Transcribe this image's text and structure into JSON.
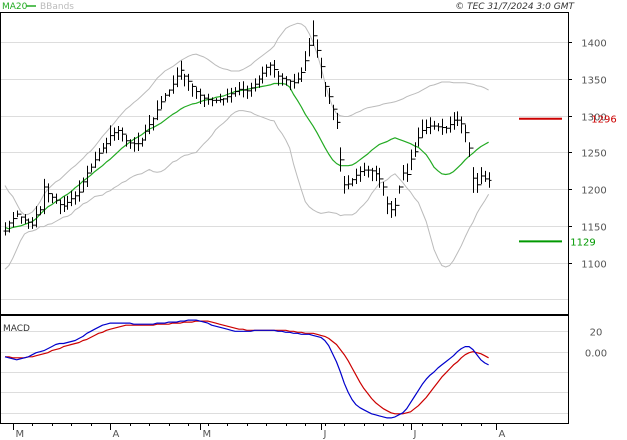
{
  "header": {
    "legend_ma": "MA20",
    "legend_bb": "BBands",
    "copyright": "© TEC 31/7/2024 3:0 GMT"
  },
  "colors": {
    "ma20": "#22aa22",
    "bbands": "#bbbbbb",
    "price": "#000000",
    "resistance": "#cc0000",
    "support": "#009900",
    "macd": "#0000cc",
    "signal": "#cc0000",
    "grid": "#dddddd"
  },
  "chart_data": [
    {
      "type": "ohlc",
      "title": "",
      "ylim": [
        1030,
        1440
      ],
      "y_ticks": [
        1100,
        1150,
        1200,
        1250,
        1300,
        1350,
        1400
      ],
      "y_tick_labels": [
        "1100",
        "1150",
        "1200",
        "1250",
        "1300",
        "1350",
        "1400"
      ],
      "x_month_labels": [
        "M",
        "A",
        "M",
        "J",
        "J",
        "A"
      ],
      "x_month_start_index": [
        2,
        27,
        50,
        81,
        104,
        126
      ],
      "series_count": 130,
      "closes": [
        1143,
        1154,
        1160,
        1166,
        1162,
        1158,
        1155,
        1151,
        1165,
        1172,
        1203,
        1194,
        1189,
        1185,
        1179,
        1177,
        1182,
        1187,
        1191,
        1196,
        1210,
        1222,
        1230,
        1240,
        1249,
        1256,
        1262,
        1273,
        1277,
        1280,
        1275,
        1266,
        1263,
        1262,
        1262,
        1267,
        1279,
        1288,
        1296,
        1308,
        1319,
        1328,
        1335,
        1343,
        1354,
        1362,
        1354,
        1347,
        1340,
        1333,
        1328,
        1324,
        1322,
        1321,
        1321,
        1322,
        1323,
        1326,
        1330,
        1333,
        1336,
        1335,
        1334,
        1338,
        1343,
        1350,
        1358,
        1366,
        1369,
        1363,
        1354,
        1351,
        1349,
        1347,
        1345,
        1350,
        1359,
        1375,
        1396,
        1409,
        1389,
        1367,
        1340,
        1326,
        1309,
        1291,
        1240,
        1206,
        1207,
        1213,
        1219,
        1224,
        1226,
        1226,
        1225,
        1221,
        1214,
        1203,
        1180,
        1172,
        1178,
        1203,
        1222,
        1220,
        1241,
        1251,
        1270,
        1280,
        1284,
        1286,
        1286,
        1285,
        1284,
        1283,
        1288,
        1294,
        1294,
        1289,
        1277,
        1256,
        1215,
        1206,
        1218,
        1214,
        1212
      ],
      "highs": [
        1155,
        1157,
        1169,
        1171,
        1163,
        1166,
        1160,
        1162,
        1177,
        1177,
        1214,
        1208,
        1194,
        1194,
        1186,
        1190,
        1191,
        1198,
        1197,
        1212,
        1216,
        1232,
        1235,
        1251,
        1256,
        1263,
        1270,
        1287,
        1284,
        1286,
        1284,
        1274,
        1268,
        1271,
        1277,
        1270,
        1288,
        1301,
        1298,
        1321,
        1327,
        1331,
        1336,
        1355,
        1366,
        1375,
        1357,
        1357,
        1344,
        1339,
        1337,
        1329,
        1330,
        1325,
        1324,
        1330,
        1324,
        1337,
        1338,
        1339,
        1346,
        1347,
        1341,
        1345,
        1351,
        1355,
        1367,
        1370,
        1373,
        1376,
        1361,
        1358,
        1354,
        1349,
        1357,
        1359,
        1366,
        1388,
        1406,
        1430,
        1404,
        1379,
        1346,
        1338,
        1315,
        1304,
        1257,
        1218,
        1219,
        1215,
        1228,
        1231,
        1236,
        1232,
        1229,
        1232,
        1229,
        1210,
        1190,
        1184,
        1188,
        1205,
        1233,
        1235,
        1254,
        1264,
        1284,
        1295,
        1295,
        1298,
        1293,
        1290,
        1296,
        1286,
        1299,
        1305,
        1306,
        1299,
        1288,
        1264,
        1230,
        1222,
        1230,
        1225,
        1223
      ],
      "lows": [
        1137,
        1141,
        1148,
        1162,
        1153,
        1153,
        1146,
        1146,
        1148,
        1165,
        1166,
        1182,
        1181,
        1180,
        1166,
        1169,
        1172,
        1177,
        1179,
        1183,
        1196,
        1203,
        1223,
        1229,
        1238,
        1250,
        1249,
        1259,
        1266,
        1267,
        1265,
        1258,
        1255,
        1251,
        1252,
        1258,
        1266,
        1275,
        1280,
        1294,
        1309,
        1320,
        1326,
        1330,
        1339,
        1349,
        1340,
        1334,
        1326,
        1323,
        1316,
        1312,
        1315,
        1313,
        1317,
        1318,
        1314,
        1318,
        1318,
        1326,
        1328,
        1325,
        1323,
        1326,
        1333,
        1338,
        1344,
        1353,
        1355,
        1352,
        1341,
        1341,
        1341,
        1335,
        1337,
        1344,
        1346,
        1361,
        1381,
        1395,
        1379,
        1351,
        1326,
        1316,
        1294,
        1282,
        1224,
        1194,
        1200,
        1204,
        1207,
        1210,
        1218,
        1216,
        1211,
        1211,
        1202,
        1191,
        1166,
        1161,
        1163,
        1194,
        1212,
        1210,
        1226,
        1244,
        1258,
        1270,
        1275,
        1275,
        1281,
        1279,
        1274,
        1276,
        1277,
        1281,
        1286,
        1276,
        1264,
        1244,
        1195,
        1195,
        1207,
        1210,
        1202
      ],
      "ma20": [
        1148,
        1146,
        1148,
        1149,
        1150,
        1152,
        1154,
        1156,
        1160,
        1166,
        1171,
        1176,
        1179,
        1183,
        1186,
        1190,
        1193,
        1197,
        1202,
        1206,
        1211,
        1215,
        1219,
        1224,
        1228,
        1232,
        1237,
        1241,
        1246,
        1251,
        1256,
        1260,
        1264,
        1268,
        1271,
        1274,
        1278,
        1282,
        1284,
        1287,
        1290,
        1294,
        1298,
        1302,
        1305,
        1309,
        1312,
        1314,
        1316,
        1317,
        1319,
        1321,
        1322,
        1323,
        1325,
        1326,
        1327,
        1329,
        1331,
        1333,
        1334,
        1335,
        1336,
        1337,
        1338,
        1339,
        1340,
        1341,
        1342,
        1344,
        1344,
        1344,
        1343,
        1339,
        1329,
        1321,
        1312,
        1302,
        1294,
        1286,
        1277,
        1267,
        1257,
        1248,
        1240,
        1235,
        1232,
        1232,
        1232,
        1233,
        1236,
        1240,
        1244,
        1248,
        1253,
        1257,
        1261,
        1263,
        1265,
        1268,
        1270,
        1268,
        1266,
        1264,
        1262,
        1259,
        1257,
        1252,
        1247,
        1239,
        1230,
        1225,
        1221,
        1220,
        1221,
        1224,
        1229,
        1234,
        1240,
        1245,
        1249,
        1254,
        1258,
        1261,
        1264
      ],
      "bb_upper": [
        1205,
        1196,
        1190,
        1180,
        1170,
        1165,
        1166,
        1169,
        1175,
        1183,
        1193,
        1200,
        1205,
        1210,
        1213,
        1218,
        1223,
        1228,
        1232,
        1237,
        1242,
        1248,
        1252,
        1258,
        1265,
        1272,
        1278,
        1284,
        1290,
        1297,
        1303,
        1309,
        1313,
        1318,
        1322,
        1327,
        1332,
        1337,
        1344,
        1351,
        1356,
        1361,
        1364,
        1367,
        1371,
        1375,
        1378,
        1381,
        1383,
        1384,
        1382,
        1380,
        1377,
        1373,
        1369,
        1366,
        1364,
        1363,
        1361,
        1361,
        1361,
        1363,
        1366,
        1369,
        1374,
        1378,
        1382,
        1386,
        1390,
        1395,
        1405,
        1412,
        1419,
        1422,
        1424,
        1426,
        1425,
        1421,
        1412,
        1400,
        1385,
        1367,
        1346,
        1327,
        1312,
        1303,
        1300,
        1299,
        1299,
        1301,
        1304,
        1306,
        1309,
        1311,
        1312,
        1313,
        1314,
        1316,
        1317,
        1318,
        1319,
        1321,
        1323,
        1326,
        1328,
        1330,
        1332,
        1335,
        1338,
        1341,
        1342,
        1344,
        1346,
        1346,
        1346,
        1345,
        1345,
        1345,
        1345,
        1344,
        1343,
        1341,
        1340,
        1338,
        1335
      ],
      "bb_lower": [
        1091,
        1096,
        1106,
        1118,
        1130,
        1139,
        1142,
        1143,
        1145,
        1149,
        1149,
        1152,
        1153,
        1156,
        1159,
        1162,
        1163,
        1166,
        1172,
        1175,
        1180,
        1182,
        1186,
        1190,
        1191,
        1192,
        1196,
        1198,
        1202,
        1205,
        1209,
        1211,
        1215,
        1218,
        1220,
        1221,
        1224,
        1227,
        1224,
        1223,
        1224,
        1227,
        1232,
        1237,
        1239,
        1243,
        1246,
        1247,
        1249,
        1250,
        1256,
        1262,
        1267,
        1273,
        1281,
        1286,
        1290,
        1295,
        1301,
        1305,
        1307,
        1307,
        1306,
        1305,
        1302,
        1300,
        1298,
        1296,
        1294,
        1293,
        1283,
        1276,
        1267,
        1256,
        1234,
        1216,
        1199,
        1183,
        1176,
        1172,
        1169,
        1167,
        1168,
        1169,
        1168,
        1167,
        1164,
        1165,
        1165,
        1165,
        1168,
        1174,
        1179,
        1185,
        1194,
        1201,
        1208,
        1210,
        1213,
        1218,
        1221,
        1215,
        1209,
        1202,
        1196,
        1188,
        1182,
        1169,
        1156,
        1137,
        1118,
        1106,
        1096,
        1094,
        1096,
        1103,
        1113,
        1123,
        1135,
        1146,
        1155,
        1167,
        1176,
        1184,
        1193
      ],
      "resistance": {
        "value": 1296,
        "label": "1296"
      },
      "support": {
        "value": 1129,
        "label": "1129"
      },
      "legend": [
        "MA20",
        "BBands"
      ]
    },
    {
      "type": "line",
      "title": "MACD",
      "ylim": [
        -70,
        35
      ],
      "y_ticks": [
        20,
        0
      ],
      "y_tick_labels": [
        "20",
        "0.00"
      ],
      "series": [
        {
          "name": "",
          "values": [
            -5,
            -6,
            -7,
            -8,
            -7,
            -6,
            -5,
            -3,
            -1,
            0,
            1,
            3,
            5,
            7,
            8,
            8,
            9,
            10,
            11,
            13,
            15,
            18,
            20,
            22,
            24,
            26,
            27,
            28,
            28,
            28,
            28,
            28,
            28,
            27,
            27,
            27,
            27,
            27,
            27,
            28,
            28,
            28,
            29,
            29,
            29,
            30,
            30,
            31,
            31,
            31,
            30,
            29,
            28,
            26,
            25,
            24,
            23,
            22,
            21,
            20,
            20,
            20,
            20,
            20,
            21,
            21,
            21,
            21,
            21,
            21,
            20,
            20,
            19,
            19,
            18,
            18,
            17,
            17,
            17,
            16,
            15,
            14,
            11,
            6,
            -2,
            -10,
            -20,
            -31,
            -40,
            -47,
            -52,
            -55,
            -57,
            -59,
            -61,
            -62,
            -63,
            -64,
            -65,
            -65,
            -64,
            -62,
            -60,
            -56,
            -50,
            -44,
            -38,
            -32,
            -27,
            -23,
            -20,
            -16,
            -13,
            -10,
            -7,
            -4,
            0,
            3,
            5,
            5,
            2,
            -3,
            -8,
            -11,
            -13
          ]
        },
        {
          "name": "",
          "values": [
            -5,
            -5,
            -6,
            -6,
            -6,
            -6,
            -5,
            -5,
            -4,
            -3,
            -2,
            -1,
            1,
            2,
            3,
            5,
            6,
            7,
            8,
            9,
            11,
            12,
            14,
            16,
            18,
            19,
            21,
            22,
            23,
            24,
            25,
            26,
            26,
            26,
            26,
            26,
            26,
            26,
            26,
            27,
            27,
            27,
            27,
            28,
            28,
            28,
            29,
            29,
            29,
            30,
            30,
            30,
            30,
            29,
            28,
            27,
            26,
            25,
            24,
            23,
            22,
            22,
            21,
            21,
            21,
            21,
            21,
            21,
            21,
            21,
            21,
            21,
            21,
            20,
            20,
            19,
            19,
            18,
            18,
            18,
            17,
            16,
            15,
            13,
            10,
            7,
            2,
            -3,
            -9,
            -16,
            -23,
            -30,
            -36,
            -41,
            -46,
            -50,
            -53,
            -56,
            -58,
            -60,
            -61,
            -61,
            -61,
            -60,
            -59,
            -56,
            -53,
            -49,
            -45,
            -40,
            -35,
            -30,
            -25,
            -21,
            -17,
            -13,
            -10,
            -6,
            -3,
            -1,
            0,
            -1,
            -2,
            -4,
            -6
          ]
        }
      ]
    }
  ]
}
